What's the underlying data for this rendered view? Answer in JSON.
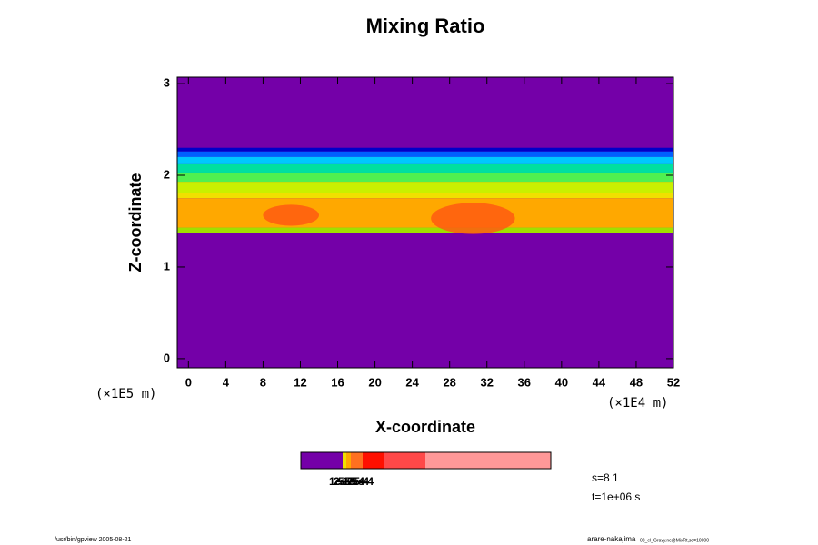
{
  "chart_data": {
    "type": "contour",
    "title": "Mixing Ratio",
    "xlabel": "X-coordinate",
    "ylabel": "Z-coordinate",
    "xunit": "(×1E4 m)",
    "yunit": "(×1E5 m)",
    "xlim": [
      -1.2,
      52
    ],
    "ylim": [
      -0.1,
      3.07
    ],
    "xticks": [
      0,
      4,
      8,
      12,
      16,
      20,
      24,
      28,
      32,
      36,
      40,
      44,
      48,
      52
    ],
    "yticks": [
      0,
      1,
      2,
      3
    ],
    "background": "#7400a8",
    "layers": [
      {
        "z": [
          2.26,
          2.3
        ],
        "color": "#0000c8"
      },
      {
        "z": [
          2.2,
          2.26
        ],
        "color": "#0060ff"
      },
      {
        "z": [
          2.12,
          2.2
        ],
        "color": "#00c8ff"
      },
      {
        "z": [
          2.03,
          2.12
        ],
        "color": "#00e0a0"
      },
      {
        "z": [
          1.93,
          2.03
        ],
        "color": "#50f050"
      },
      {
        "z": [
          1.81,
          1.93
        ],
        "color": "#c8f000"
      },
      {
        "z": [
          1.75,
          1.81
        ],
        "color": "#f0e000"
      },
      {
        "z": [
          1.43,
          1.75
        ],
        "color": "#ffa800"
      },
      {
        "z": [
          1.37,
          1.43
        ],
        "color": "#a0e000"
      }
    ],
    "patches": [
      {
        "x": [
          8,
          14
        ],
        "z": [
          1.45,
          1.68
        ],
        "color": "#ff5a10"
      },
      {
        "x": [
          26,
          35
        ],
        "z": [
          1.36,
          1.7
        ],
        "color": "#ff5a10"
      }
    ],
    "colorbar": {
      "colors": [
        "#7400a8",
        "#f0e000",
        "#ffa800",
        "#ff7020",
        "#ff1000",
        "#ff4848",
        "#ff9898"
      ],
      "labels": [
        "1e-5",
        "2e-5",
        "5e-5",
        "1e-4",
        "2e-4",
        "5e-4"
      ]
    },
    "notes": [
      "s=8 1",
      "t=1e+06 s"
    ],
    "footer_left": "/usr/bin/gpview 2005-08-21",
    "footer_right": "arare-nakajima",
    "footer_right_small": "03_el_Gravy.nc@MixRt,sd=10000"
  }
}
